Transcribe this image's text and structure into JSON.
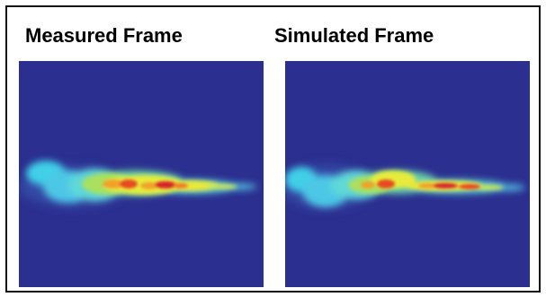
{
  "panels": [
    {
      "title": "Measured Frame",
      "background_color": "#2b2f8f",
      "description_colormap": "jet"
    },
    {
      "title": "Simulated Frame",
      "background_color": "#2b2f8f",
      "description_colormap": "jet"
    }
  ],
  "colors": {
    "frame_border": "#111111",
    "page_background": "#ffffff",
    "plume_low": "#3fd0e8",
    "plume_mid": "#f2e830",
    "plume_high": "#d8202a"
  }
}
